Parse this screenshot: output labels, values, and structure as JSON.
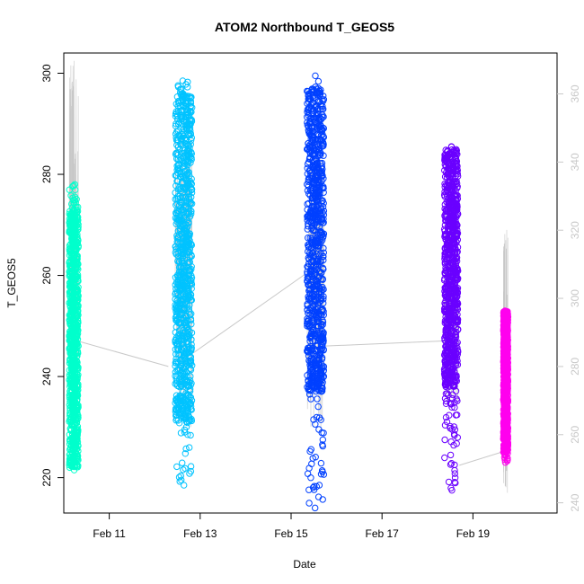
{
  "chart_data": {
    "type": "scatter",
    "title": "ATOM2 Northbound T_GEOS5",
    "xlabel": "Date",
    "ylabel": "T_GEOS5",
    "xlim": [
      10.0,
      20.85
    ],
    "ylim": [
      213,
      304
    ],
    "y2lim": [
      237,
      372
    ],
    "x_ticks": [
      {
        "value": 11,
        "label": "Feb 11"
      },
      {
        "value": 13,
        "label": "Feb 13"
      },
      {
        "value": 15,
        "label": "Feb 15"
      },
      {
        "value": 17,
        "label": "Feb 17"
      },
      {
        "value": 19,
        "label": "Feb 19"
      }
    ],
    "y_ticks": [
      220,
      240,
      260,
      280,
      300
    ],
    "y2_ticks": [
      240,
      260,
      280,
      300,
      320,
      340,
      360
    ],
    "series": [
      {
        "color": "#00ffcc",
        "x_range": [
          10.12,
          10.32
        ],
        "y_range": [
          221.5,
          278
        ],
        "y_dense": [
          222,
          273
        ]
      },
      {
        "color": "#00c3ff",
        "x_range": [
          12.45,
          12.82
        ],
        "y_range": [
          218.5,
          298.5
        ],
        "y_dense": [
          231,
          296
        ]
      },
      {
        "color": "#0040ff",
        "x_range": [
          15.35,
          15.72
        ],
        "y_range": [
          214,
          299.5
        ],
        "y_dense": [
          237,
          297
        ]
      },
      {
        "color": "#6a00ff",
        "x_range": [
          18.37,
          18.67
        ],
        "y_range": [
          217.5,
          285.5
        ],
        "y_dense": [
          238,
          285
        ]
      },
      {
        "color": "#ff00ee",
        "x_range": [
          19.67,
          19.77
        ],
        "y_range": [
          223,
          253
        ],
        "y_dense": [
          225,
          253
        ]
      }
    ],
    "secondary_series": {
      "color": "#c8c8c8",
      "segments": [
        {
          "x": [
            10.12,
            10.32
          ],
          "y": [
            270,
            370
          ]
        },
        {
          "x": [
            12.45,
            12.82
          ],
          "y": [
            262,
            355
          ]
        },
        {
          "x": [
            15.35,
            15.72
          ],
          "y": [
            260,
            350
          ]
        },
        {
          "x": [
            18.37,
            18.67
          ],
          "y": [
            268,
            330
          ]
        },
        {
          "x": [
            19.67,
            19.77
          ],
          "y": [
            240,
            321
          ]
        }
      ],
      "connectors": [
        {
          "x": [
            10.3,
            12.3
          ],
          "y": [
            287.5,
            280
          ]
        },
        {
          "x": [
            12.85,
            15.3
          ],
          "y": [
            284,
            307
          ]
        },
        {
          "x": [
            15.75,
            18.35
          ],
          "y": [
            286,
            287.5
          ]
        },
        {
          "x": [
            18.7,
            19.66
          ],
          "y": [
            251,
            255
          ]
        }
      ]
    }
  }
}
